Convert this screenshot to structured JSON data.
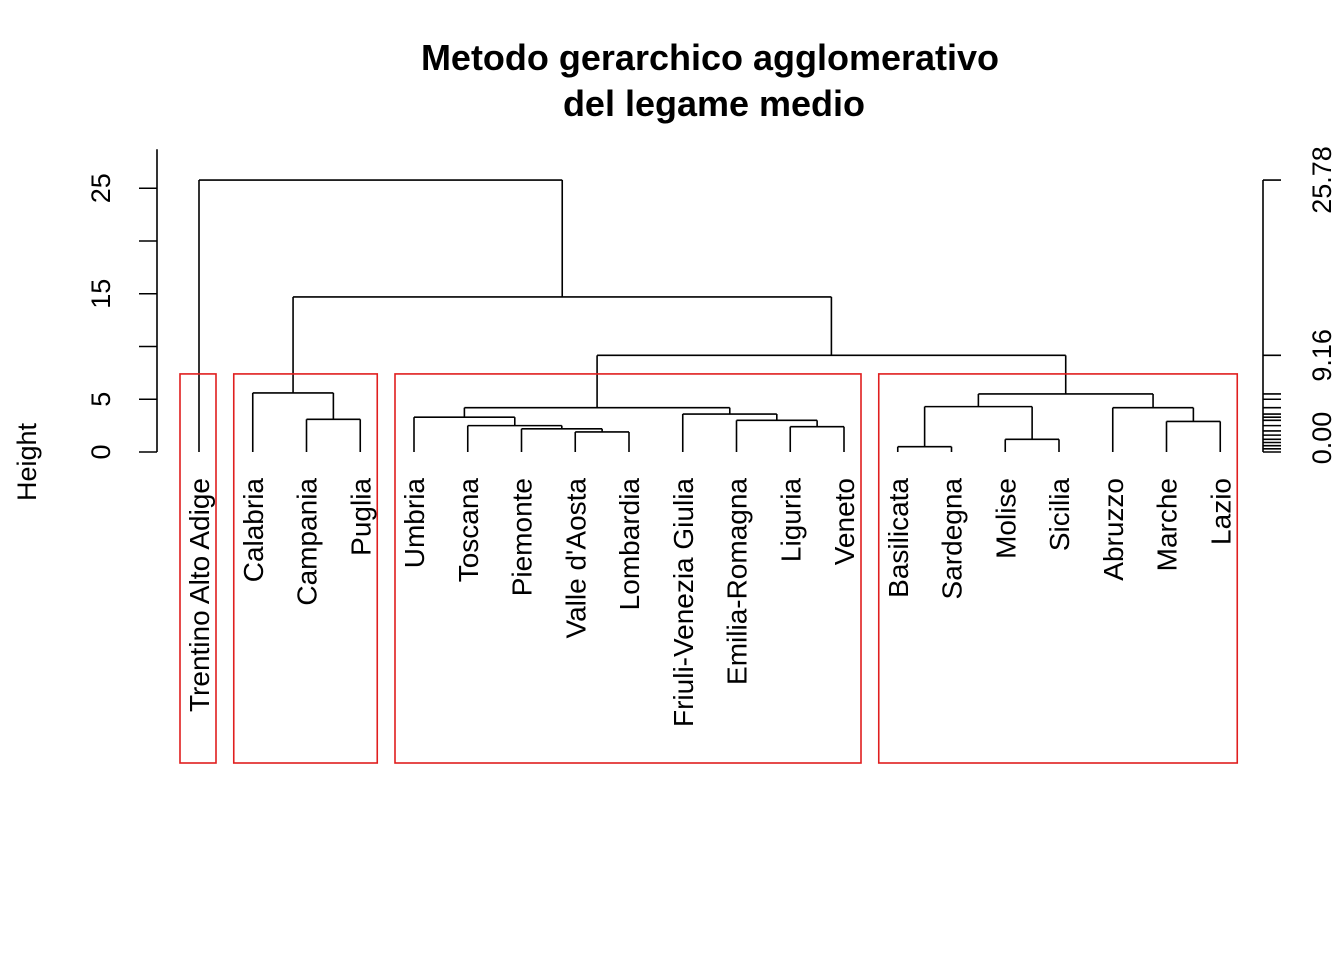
{
  "chart_data": {
    "type": "dendrogram",
    "title": "Metodo gerarchico agglomerativo",
    "subtitle": "del legame medio",
    "ylabel": "Height",
    "ylim": [
      0,
      26
    ],
    "left_axis_ticks": [
      "0",
      "5",
      "15",
      "25"
    ],
    "left_axis_tick_values": [
      0,
      5,
      10,
      15,
      20,
      25
    ],
    "right_axis_labels": [
      "0.00",
      "9.16",
      "25.78"
    ],
    "right_axis_label_values": [
      0.0,
      9.16,
      25.78
    ],
    "right_axis_extra_ticks": [
      0.3,
      0.6,
      0.9,
      1.2,
      1.6,
      2.0,
      2.5,
      3.0,
      3.3,
      3.6,
      4.2,
      5.0,
      5.5
    ],
    "leaves": [
      "Trentino Alto Adige",
      "Calabria",
      "Campania",
      "Puglia",
      "Umbria",
      "Toscana",
      "Piemonte",
      "Valle d'Aosta",
      "Lombardia",
      "Friuli-Venezia Giulia",
      "Emilia-Romagna",
      "Liguria",
      "Veneto",
      "Basilicata",
      "Sardegna",
      "Molise",
      "Sicilia",
      "Abruzzo",
      "Marche",
      "Lazio"
    ],
    "merges": [
      {
        "height": 0.5,
        "children": [
          "Basilicata",
          "Sardegna"
        ]
      },
      {
        "height": 1.2,
        "children": [
          "Molise",
          "Sicilia"
        ]
      },
      {
        "height": 1.9,
        "children": [
          "Valle d'Aosta",
          "Lombardia"
        ]
      },
      {
        "height": 2.2,
        "children": [
          "Piemonte",
          "Valle d'Aosta + Lombardia"
        ]
      },
      {
        "height": 2.4,
        "children": [
          "Liguria",
          "Veneto"
        ]
      },
      {
        "height": 2.5,
        "children": [
          "Toscana",
          "Piemonte + Valle d'Aosta + Lombardia"
        ]
      },
      {
        "height": 2.9,
        "children": [
          "Marche",
          "Lazio"
        ]
      },
      {
        "height": 3.0,
        "children": [
          "Emilia-Romagna",
          "Liguria + Veneto"
        ]
      },
      {
        "height": 3.1,
        "children": [
          "Campania",
          "Puglia"
        ]
      },
      {
        "height": 3.3,
        "children": [
          "Umbria",
          "Toscana + Piemonte + Valle d'Aosta + Lombardia"
        ]
      },
      {
        "height": 3.6,
        "children": [
          "Friuli-Venezia Giulia",
          "Emilia-Romagna + Liguria + Veneto"
        ]
      },
      {
        "height": 4.2,
        "children": [
          "Abruzzo",
          "Marche + Lazio"
        ]
      },
      {
        "height": 4.3,
        "children": [
          "Basilicata + Sardegna",
          "Molise + Sicilia"
        ]
      },
      {
        "height": 4.2,
        "children": [
          "Umbria cluster",
          "Friuli-Venezia Giulia cluster"
        ]
      },
      {
        "height": 5.5,
        "children": [
          "Basilicata..Sicilia",
          "Abruzzo..Lazio"
        ]
      },
      {
        "height": 5.6,
        "children": [
          "Calabria",
          "Campania + Puglia"
        ]
      },
      {
        "height": 9.16,
        "children": [
          "North-Centre cluster",
          "South-Centre cluster"
        ]
      },
      {
        "height": 14.7,
        "children": [
          "Calabria cluster",
          "9.16 cluster"
        ]
      },
      {
        "height": 25.78,
        "children": [
          "Trentino Alto Adige",
          "all others"
        ]
      }
    ],
    "clusters": [
      {
        "members": [
          "Trentino Alto Adige"
        ]
      },
      {
        "members": [
          "Calabria",
          "Campania",
          "Puglia"
        ]
      },
      {
        "members": [
          "Umbria",
          "Toscana",
          "Piemonte",
          "Valle d'Aosta",
          "Lombardia",
          "Friuli-Venezia Giulia",
          "Emilia-Romagna",
          "Liguria",
          "Veneto"
        ]
      },
      {
        "members": [
          "Basilicata",
          "Sardegna",
          "Molise",
          "Sicilia",
          "Abruzzo",
          "Marche",
          "Lazio"
        ]
      }
    ],
    "colors": {
      "branches": "#000000",
      "cluster_boxes": "#e01e1e"
    }
  }
}
